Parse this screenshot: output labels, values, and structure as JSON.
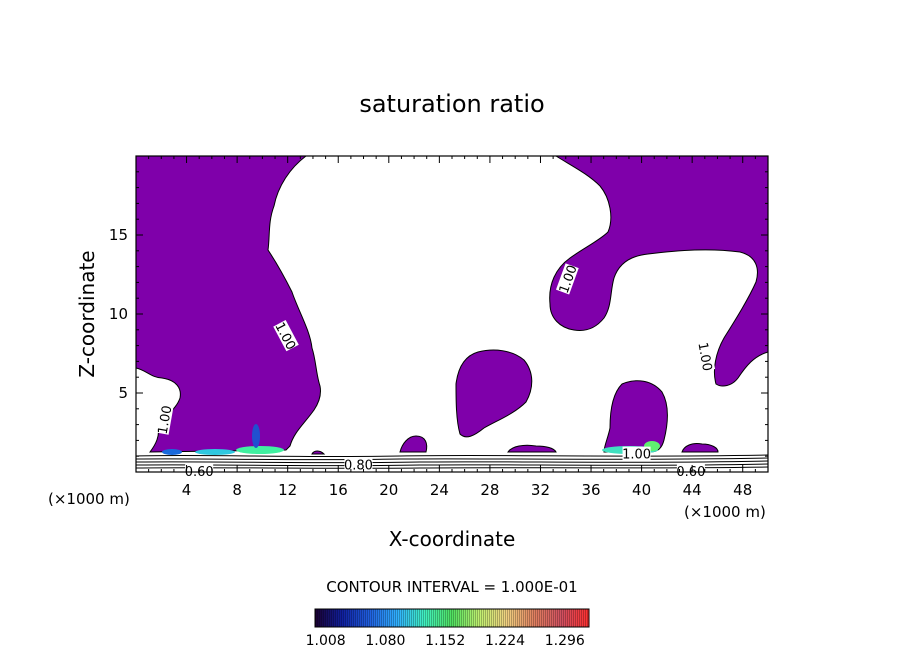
{
  "chart_data": {
    "type": "contour",
    "title": "saturation ratio",
    "xlabel": "X-coordinate",
    "ylabel": "Z-coordinate",
    "x_unit": "(×1000 m)",
    "y_unit": "(×1000 m)",
    "xlim": [
      0,
      50
    ],
    "ylim": [
      0,
      20
    ],
    "x_ticks": [
      4,
      8,
      12,
      16,
      20,
      24,
      28,
      32,
      36,
      40,
      44,
      48
    ],
    "y_ticks": [
      5,
      10,
      15
    ],
    "contour_interval_text": "CONTOUR INTERVAL = 1.000E-01",
    "fill_threshold": 1.0,
    "fill_color": "#7f00aa",
    "contour_labels": [
      {
        "text": "1.00",
        "x": 11.8,
        "y": 8.6,
        "angle": 62
      },
      {
        "text": "1.00",
        "x": 2.3,
        "y": 3.3,
        "angle": -80
      },
      {
        "text": "1.00",
        "x": 34.2,
        "y": 12.2,
        "angle": -70
      },
      {
        "text": "1.00",
        "x": 45.0,
        "y": 7.3,
        "angle": 80
      },
      {
        "text": "1.00",
        "x": 39.6,
        "y": 1.1,
        "angle": 0
      },
      {
        "text": "0.80",
        "x": 17.6,
        "y": 0.4,
        "angle": 0
      },
      {
        "text": "0.60",
        "x": 5.0,
        "y": 0.0,
        "angle": 0
      },
      {
        "text": "0.60",
        "x": 43.9,
        "y": 0.0,
        "angle": 0
      }
    ],
    "colorbar": {
      "ticks": [
        1.008,
        1.08,
        1.152,
        1.224,
        1.296
      ],
      "tick_labels": [
        "1.008",
        "1.080",
        "1.152",
        "1.224",
        "1.296"
      ],
      "range": [
        1.0,
        1.33
      ],
      "colors": [
        "#1a0030",
        "#1020a0",
        "#2060e0",
        "#30b0ff",
        "#40f0c0",
        "#50e060",
        "#c0f070",
        "#f0d080",
        "#e08060",
        "#d05060",
        "#ff3030"
      ]
    }
  }
}
